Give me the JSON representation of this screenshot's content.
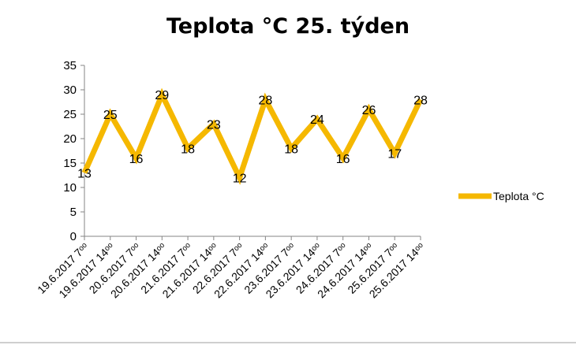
{
  "chart_data": {
    "type": "line",
    "title": "Teplota °C 25. týden",
    "xlabel": "",
    "ylabel": "",
    "ylim": [
      0,
      35
    ],
    "yticks": [
      0,
      5,
      10,
      15,
      20,
      25,
      30,
      35
    ],
    "grid": false,
    "legend_position": "right",
    "categories": [
      "19.6.2017 7ᵒᵒ",
      "19.6.2017 14ᵒᵒ",
      "20.6.2017 7ᵒᵒ",
      "20.6.2017 14ᵒᵒ",
      "21.6.2017 7ᵒᵒ",
      "21.6.2017 14ᵒᵒ",
      "22.6.2017 7ᵒᵒ",
      "22.6.2017 14ᵒᵒ",
      "23.6.2017 7ᵒᵒ",
      "23.6.2017 14ᵒᵒ",
      "24.6.2017 7ᵒᵒ",
      "24.6.2017 14ᵒᵒ",
      "25.6.2017 7ᵒᵒ",
      "25.6.2017 14ᵒᵒ"
    ],
    "series": [
      {
        "name": "Teplota °C",
        "color": "#f5b800",
        "values": [
          13,
          25,
          16,
          29,
          18,
          23,
          12,
          28,
          18,
          24,
          16,
          26,
          17,
          28
        ]
      }
    ]
  }
}
